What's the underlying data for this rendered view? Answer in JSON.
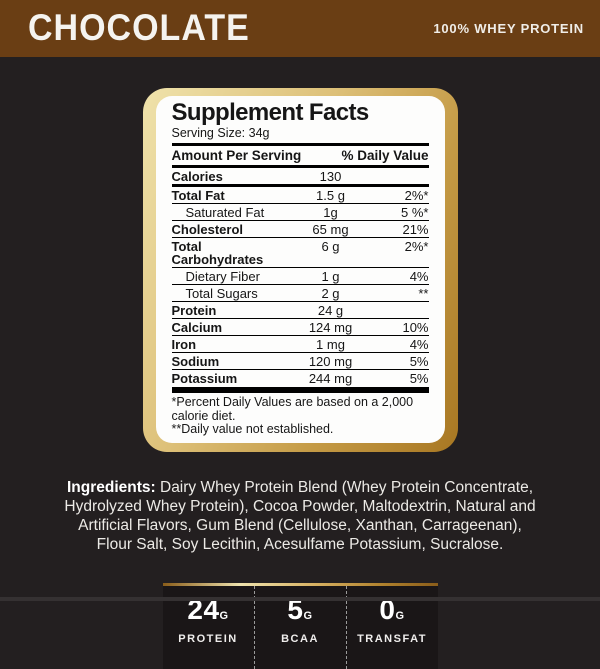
{
  "header": {
    "flavor": "CHOCOLATE",
    "product_type": "100% WHEY PROTEIN"
  },
  "colors": {
    "header_brown": "#6a3e14",
    "page_background": "#231f20",
    "panel_gold_light": "#efe2ab",
    "panel_gold_dark": "#a87722",
    "stats_bar_background": "#1a1617"
  },
  "supplement_facts": {
    "title": "Supplement Facts",
    "serving_size": "Serving Size: 34g",
    "columns": {
      "amount": "Amount Per Serving",
      "daily_value": "% Daily Value"
    },
    "rows": [
      {
        "name": "Calories",
        "amount": "130",
        "dv": "",
        "indent": false
      },
      {
        "name": "Total Fat",
        "amount": "1.5 g",
        "dv": "2%*",
        "indent": false
      },
      {
        "name": "Saturated Fat",
        "amount": "1g",
        "dv": "5 %*",
        "indent": true
      },
      {
        "name": "Cholesterol",
        "amount": "65 mg",
        "dv": "21%",
        "indent": false
      },
      {
        "name": "Total Carbohydrates",
        "amount": "6 g",
        "dv": "2%*",
        "indent": false
      },
      {
        "name": "Dietary Fiber",
        "amount": "1 g",
        "dv": "4%",
        "indent": true
      },
      {
        "name": "Total Sugars",
        "amount": "2 g",
        "dv": "**",
        "indent": true
      },
      {
        "name": "Protein",
        "amount": "24 g",
        "dv": "",
        "indent": false
      },
      {
        "name": "Calcium",
        "amount": "124 mg",
        "dv": "10%",
        "indent": false
      },
      {
        "name": "Iron",
        "amount": "1 mg",
        "dv": "4%",
        "indent": false
      },
      {
        "name": "Sodium",
        "amount": "120 mg",
        "dv": "5%",
        "indent": false
      },
      {
        "name": "Potassium",
        "amount": "244 mg",
        "dv": "5%",
        "indent": false
      }
    ],
    "footnote1": "*Percent Daily Values are based on a 2,000 calorie diet.",
    "footnote2": "**Daily value not established."
  },
  "ingredients": {
    "label": "Ingredients:",
    "text": " Dairy Whey Protein Blend (Whey Protein Concentrate, Hydrolyzed Whey Protein), Cocoa Powder, Maltodextrin, Natural and Artificial Flavors, Gum Blend (Cellulose, Xanthan, Carrageenan), Flour Salt, Soy Lecithin, Acesulfame Potassium, Sucralose."
  },
  "stats": [
    {
      "value": "24",
      "unit": "G",
      "label": "PROTEIN"
    },
    {
      "value": "5",
      "unit": "G",
      "label": "BCAA"
    },
    {
      "value": "0",
      "unit": "G",
      "label": "TRANSFAT"
    }
  ]
}
